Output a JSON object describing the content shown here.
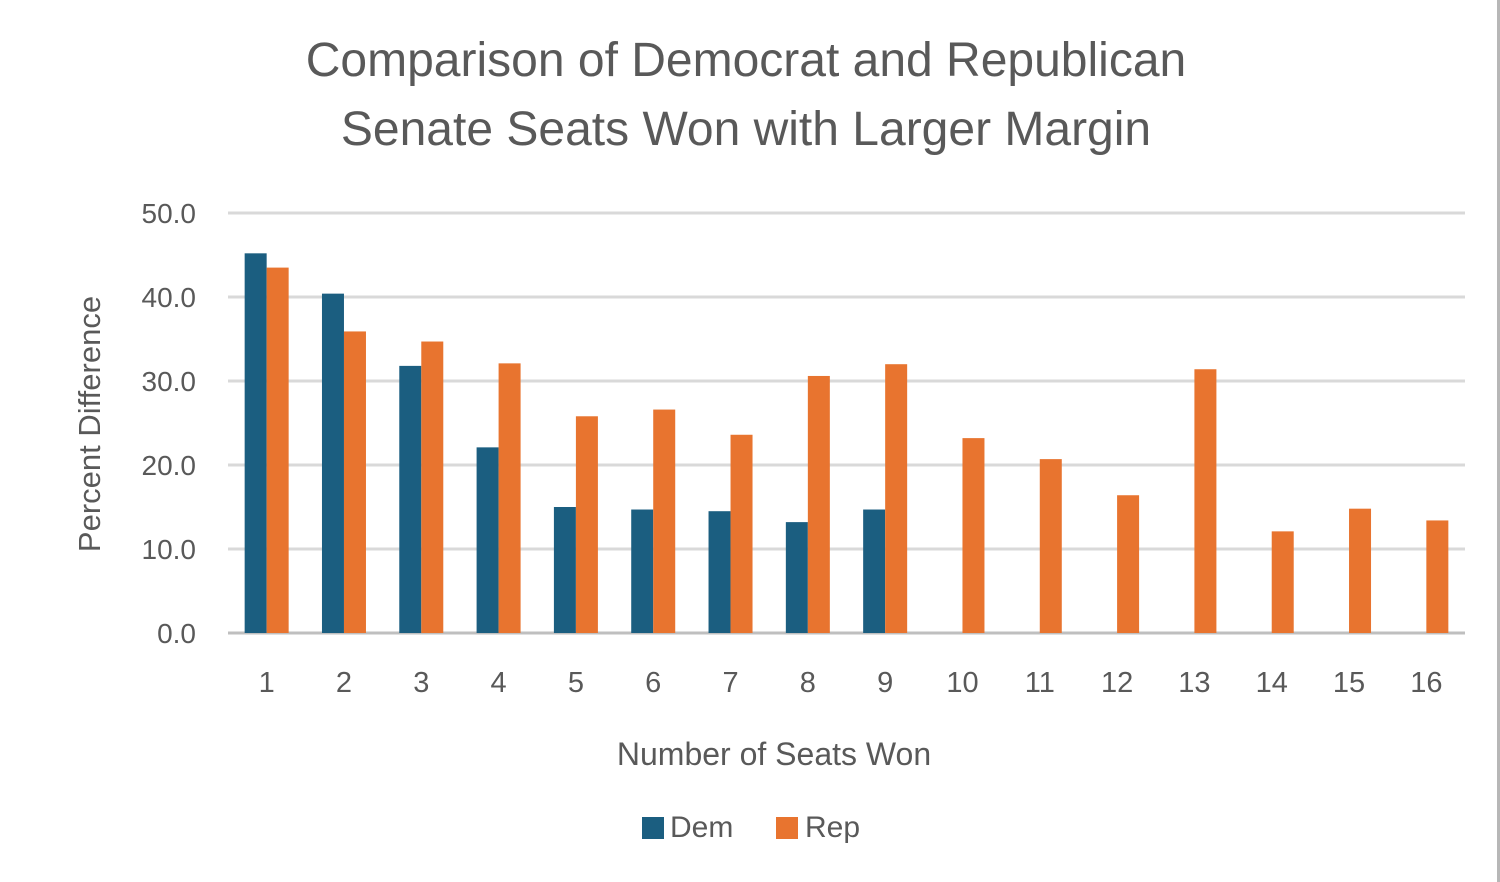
{
  "chart_data": {
    "type": "bar",
    "title": [
      "Comparison of Democrat and Republican",
      "Senate Seats Won with Larger Margin"
    ],
    "xlabel": "Number of Seats Won",
    "ylabel": "Percent Difference",
    "categories": [
      "1",
      "2",
      "3",
      "4",
      "5",
      "6",
      "7",
      "8",
      "9",
      "10",
      "11",
      "12",
      "13",
      "14",
      "15",
      "16"
    ],
    "series": [
      {
        "name": "Dem",
        "color": "#1b5e80",
        "values": [
          45.2,
          40.4,
          31.8,
          22.1,
          15.0,
          14.7,
          14.5,
          13.2,
          14.7,
          null,
          null,
          null,
          null,
          null,
          null,
          null
        ]
      },
      {
        "name": "Rep",
        "color": "#e8742f",
        "values": [
          43.5,
          35.9,
          34.7,
          32.1,
          25.8,
          26.6,
          23.6,
          30.6,
          32.0,
          23.2,
          20.7,
          16.4,
          31.4,
          12.1,
          14.8,
          13.4
        ]
      }
    ],
    "yticks": [
      "0.0",
      "10.0",
      "20.0",
      "30.0",
      "40.0",
      "50.0"
    ],
    "ylim": [
      0,
      50
    ],
    "grid": true,
    "legend_position": "bottom"
  }
}
